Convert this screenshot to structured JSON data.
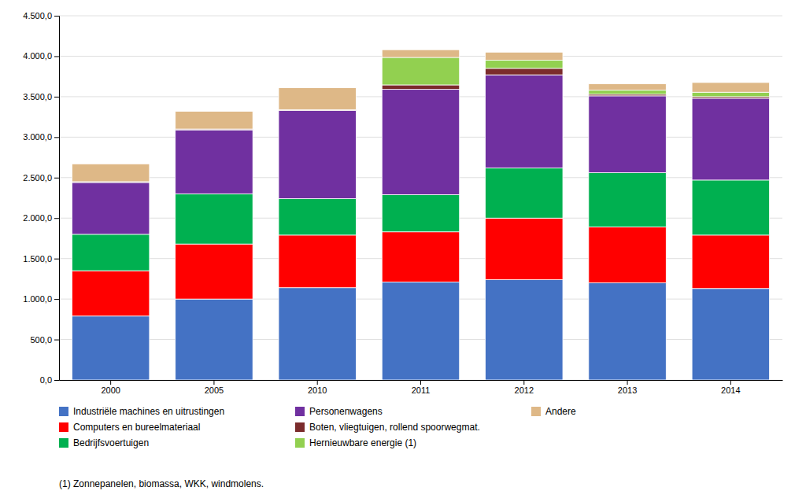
{
  "chart_data": {
    "type": "bar",
    "stacked": true,
    "grid": true,
    "legend": "bottom",
    "categories": [
      "2000",
      "2005",
      "2010",
      "2011",
      "2012",
      "2013",
      "2014"
    ],
    "series": [
      {
        "name": "Industriële machines en uitrustingen",
        "color": "#4472C4",
        "values": [
          790,
          1000,
          1140,
          1210,
          1240,
          1200,
          1130
        ]
      },
      {
        "name": "Computers en bureelmateriaal",
        "color": "#FF0000",
        "values": [
          560,
          680,
          650,
          620,
          760,
          690,
          660
        ]
      },
      {
        "name": "Bedrijfsvoertuigen",
        "color": "#00B050",
        "values": [
          450,
          620,
          450,
          460,
          620,
          670,
          680
        ]
      },
      {
        "name": "Personenwagens",
        "color": "#7030A0",
        "values": [
          640,
          790,
          1090,
          1300,
          1150,
          950,
          1010
        ]
      },
      {
        "name": "Boten, vliegtuigen, rollend spoorwegmat.",
        "color": "#7B2C2C",
        "values": [
          10,
          10,
          10,
          55,
          80,
          20,
          20
        ]
      },
      {
        "name": "Hernieuwbare energie (1)",
        "color": "#92D050",
        "values": [
          0,
          0,
          0,
          340,
          100,
          50,
          55
        ]
      },
      {
        "name": "Andere",
        "color": "#DEB887",
        "values": [
          220,
          220,
          270,
          95,
          100,
          80,
          120
        ]
      }
    ],
    "ylim": [
      0,
      4500
    ],
    "yticks": [
      {
        "value": 0,
        "label": "0,0"
      },
      {
        "value": 500,
        "label": "500,0"
      },
      {
        "value": 1000,
        "label": "1.000,0"
      },
      {
        "value": 1500,
        "label": "1.500,0"
      },
      {
        "value": 2000,
        "label": "2.000,0"
      },
      {
        "value": 2500,
        "label": "2.500,0"
      },
      {
        "value": 3000,
        "label": "3.000,0"
      },
      {
        "value": 3500,
        "label": "3.500,0"
      },
      {
        "value": 4000,
        "label": "4.000,0"
      },
      {
        "value": 4500,
        "label": "4.500,0"
      }
    ],
    "annotations": [
      "(1) Zonnepanelen, biomassa, WKK, windmolens."
    ]
  }
}
